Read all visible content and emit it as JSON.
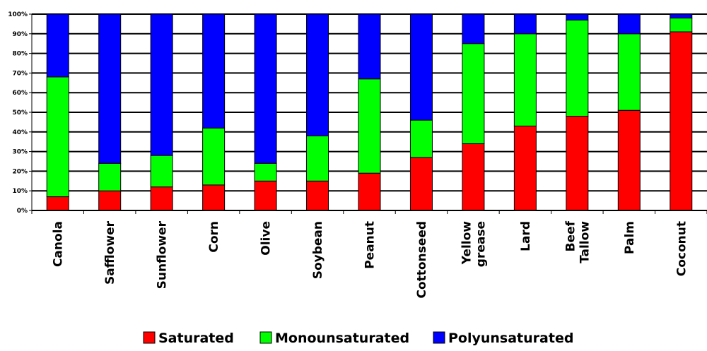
{
  "chart_data": {
    "type": "bar",
    "stacked": true,
    "percent": true,
    "categories": [
      [
        "Canola"
      ],
      [
        "Safflower"
      ],
      [
        "Sunflower"
      ],
      [
        "Corn"
      ],
      [
        "Olive"
      ],
      [
        "Soybean"
      ],
      [
        "Peanut"
      ],
      [
        "Cottonseed"
      ],
      [
        "Yellow",
        "grease"
      ],
      [
        "Lard"
      ],
      [
        "Beef",
        "Tallow"
      ],
      [
        "Palm"
      ],
      [
        "Coconut"
      ]
    ],
    "series": [
      {
        "name": "Saturated",
        "color": "#ff0000",
        "values": [
          7,
          10,
          12,
          13,
          15,
          15,
          19,
          27,
          34,
          43,
          48,
          51,
          91
        ]
      },
      {
        "name": "Monounsaturated",
        "color": "#00ff00",
        "values": [
          61,
          14,
          16,
          29,
          9,
          23,
          48,
          19,
          51,
          47,
          49,
          39,
          7
        ]
      },
      {
        "name": "Polyunsaturated",
        "color": "#0000ff",
        "values": [
          32,
          76,
          72,
          58,
          76,
          62,
          33,
          54,
          15,
          10,
          3,
          10,
          2
        ]
      }
    ],
    "ylim": [
      0,
      100
    ],
    "yticks": [
      "0%",
      "10%",
      "20%",
      "30%",
      "40%",
      "50%",
      "60%",
      "70%",
      "80%",
      "90%",
      "100%"
    ],
    "grid": true,
    "legend_position": "bottom"
  }
}
